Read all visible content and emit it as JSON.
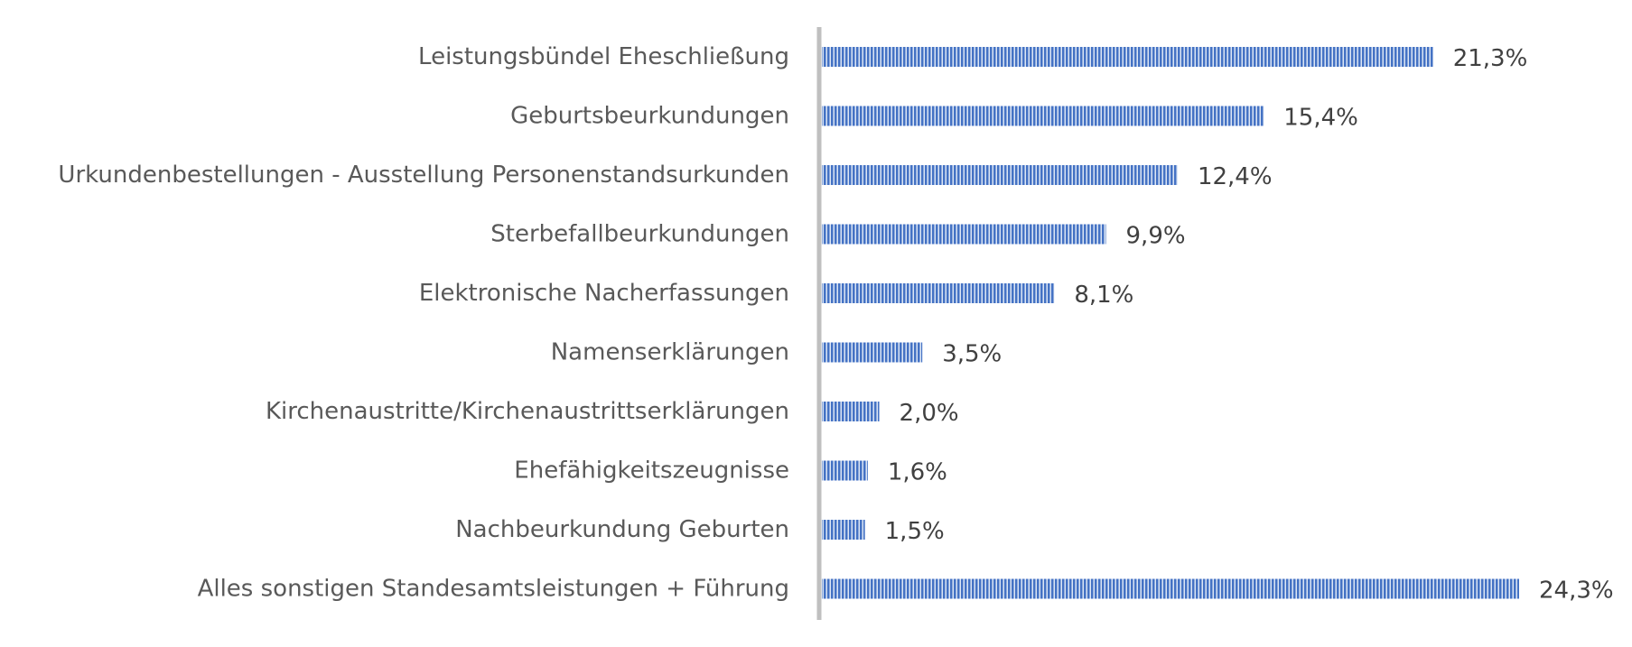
{
  "chart_data": {
    "type": "bar",
    "orientation": "horizontal",
    "categories": [
      "Leistungsbündel Eheschließung",
      "Geburtsbeurkundungen",
      "Urkundenbestellungen - Ausstellung Personenstandsurkunden",
      "Sterbefallbeurkundungen",
      "Elektronische Nacherfassungen",
      "Namenserklärungen",
      "Kirchenaustritte/Kirchenaustrittserklärungen",
      "Ehefähigkeitszeugnisse",
      "Nachbeurkundung Geburten",
      "Alles sonstigen Standesamtsleistungen + Führung"
    ],
    "values": [
      21.3,
      15.4,
      12.4,
      9.9,
      8.1,
      3.5,
      2.0,
      1.6,
      1.5,
      24.3
    ],
    "data_labels": [
      "21,3%",
      "15,4%",
      "12,4%",
      "9,9%",
      "8,1%",
      "3,5%",
      "2,0%",
      "1,6%",
      "1,5%",
      "24,3%"
    ],
    "unit": "%",
    "xlim": [
      0,
      24.3
    ],
    "grid": false,
    "legend": "none",
    "bar_pattern": "vertical-stripes",
    "colors": {
      "bar_fill": "#4472C4",
      "bar_stripe": "#DCE6F5",
      "axis": "#BFBFBF",
      "category_text": "#595959",
      "value_text": "#404040"
    }
  }
}
